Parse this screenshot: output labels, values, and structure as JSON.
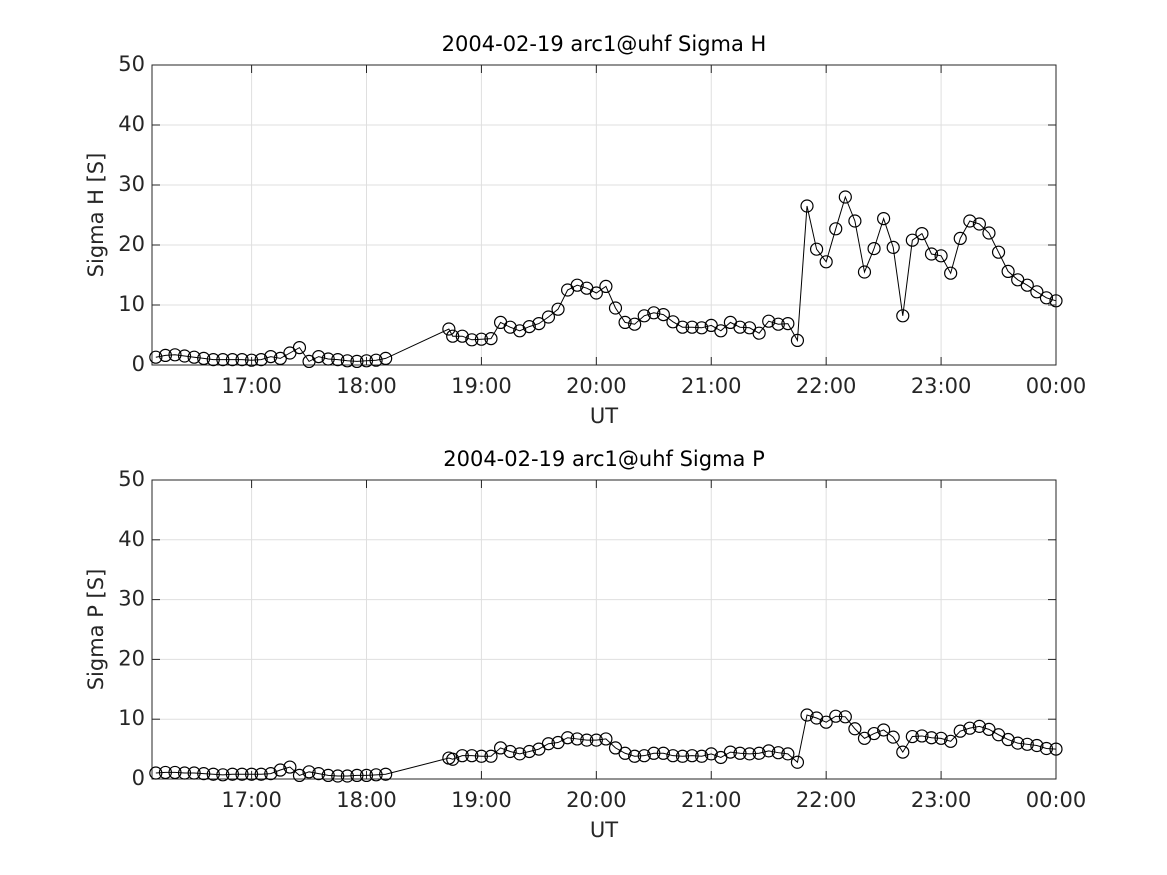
{
  "chart_data": [
    {
      "type": "line",
      "title": "2004-02-19  arc1@uhf Sigma H",
      "xlabel": "UT",
      "ylabel": "Sigma H [S]",
      "color": "#000000",
      "marker": "circle",
      "grid": true,
      "x": [
        970,
        975,
        980,
        985,
        990,
        995,
        1000,
        1005,
        1010,
        1015,
        1020,
        1025,
        1030,
        1035,
        1040,
        1045,
        1050,
        1055,
        1060,
        1065,
        1070,
        1075,
        1080,
        1085,
        1090,
        1123,
        1125,
        1130,
        1135,
        1140,
        1145,
        1150,
        1155,
        1160,
        1165,
        1170,
        1175,
        1180,
        1185,
        1190,
        1195,
        1200,
        1205,
        1210,
        1215,
        1220,
        1225,
        1230,
        1235,
        1240,
        1245,
        1250,
        1255,
        1260,
        1265,
        1270,
        1275,
        1280,
        1285,
        1290,
        1295,
        1300,
        1305,
        1310,
        1315,
        1320,
        1325,
        1330,
        1335,
        1340,
        1345,
        1350,
        1355,
        1360,
        1365,
        1370,
        1375,
        1380,
        1385,
        1390,
        1395,
        1400,
        1405,
        1410,
        1415,
        1420,
        1425,
        1430,
        1435,
        1440
      ],
      "values": [
        1.3,
        1.6,
        1.7,
        1.5,
        1.3,
        1.1,
        0.9,
        0.9,
        0.9,
        0.9,
        0.8,
        0.9,
        1.4,
        1.1,
        2.0,
        2.9,
        0.6,
        1.4,
        1.0,
        0.9,
        0.7,
        0.6,
        0.7,
        0.8,
        1.1,
        6.0,
        4.8,
        4.8,
        4.2,
        4.3,
        4.4,
        7.1,
        6.3,
        5.7,
        6.4,
        6.9,
        8.0,
        9.3,
        12.5,
        13.3,
        12.8,
        12.0,
        13.1,
        9.5,
        7.1,
        6.8,
        8.2,
        8.7,
        8.4,
        7.2,
        6.3,
        6.3,
        6.2,
        6.6,
        5.7,
        7.1,
        6.3,
        6.2,
        5.3,
        7.3,
        6.8,
        6.9,
        4.1,
        26.5,
        19.3,
        17.2,
        22.7,
        28.0,
        24.0,
        15.5,
        19.4,
        24.4,
        19.6,
        8.2,
        20.8,
        21.9,
        18.5,
        18.2,
        15.3,
        21.1,
        24.0,
        23.5,
        22.0,
        18.8,
        15.6,
        14.2,
        13.3,
        12.2,
        11.2,
        10.7
      ],
      "xlim": [
        968,
        1440
      ],
      "ylim": [
        0,
        50
      ],
      "yticks": [
        0,
        10,
        20,
        30,
        40,
        50
      ],
      "xticks": [
        {
          "value": 1020,
          "label": "17:00"
        },
        {
          "value": 1080,
          "label": "18:00"
        },
        {
          "value": 1140,
          "label": "19:00"
        },
        {
          "value": 1200,
          "label": "20:00"
        },
        {
          "value": 1260,
          "label": "21:00"
        },
        {
          "value": 1320,
          "label": "22:00"
        },
        {
          "value": 1380,
          "label": "23:00"
        },
        {
          "value": 1440,
          "label": "00:00"
        }
      ]
    },
    {
      "type": "line",
      "title": "2004-02-19  arc1@uhf Sigma P",
      "xlabel": "UT",
      "ylabel": "Sigma P [S]",
      "color": "#000000",
      "marker": "circle",
      "grid": true,
      "x": [
        970,
        975,
        980,
        985,
        990,
        995,
        1000,
        1005,
        1010,
        1015,
        1020,
        1025,
        1030,
        1035,
        1040,
        1045,
        1050,
        1055,
        1060,
        1065,
        1070,
        1075,
        1080,
        1085,
        1090,
        1123,
        1125,
        1130,
        1135,
        1140,
        1145,
        1150,
        1155,
        1160,
        1165,
        1170,
        1175,
        1180,
        1185,
        1190,
        1195,
        1200,
        1205,
        1210,
        1215,
        1220,
        1225,
        1230,
        1235,
        1240,
        1245,
        1250,
        1255,
        1260,
        1265,
        1270,
        1275,
        1280,
        1285,
        1290,
        1295,
        1300,
        1305,
        1310,
        1315,
        1320,
        1325,
        1330,
        1335,
        1340,
        1345,
        1350,
        1355,
        1360,
        1365,
        1370,
        1375,
        1380,
        1385,
        1390,
        1395,
        1400,
        1405,
        1410,
        1415,
        1420,
        1425,
        1430,
        1435,
        1440
      ],
      "values": [
        1.0,
        1.1,
        1.1,
        1.0,
        1.0,
        0.9,
        0.8,
        0.7,
        0.8,
        0.8,
        0.8,
        0.8,
        0.9,
        1.5,
        2.0,
        0.6,
        1.2,
        0.9,
        0.6,
        0.5,
        0.5,
        0.6,
        0.6,
        0.7,
        0.8,
        3.5,
        3.3,
        3.9,
        3.9,
        3.8,
        3.8,
        5.2,
        4.6,
        4.2,
        4.6,
        5.0,
        5.9,
        6.1,
        6.9,
        6.7,
        6.5,
        6.5,
        6.7,
        5.2,
        4.3,
        3.8,
        3.9,
        4.3,
        4.3,
        3.9,
        3.8,
        3.9,
        3.8,
        4.2,
        3.6,
        4.5,
        4.3,
        4.2,
        4.3,
        4.7,
        4.4,
        4.2,
        2.8,
        10.7,
        10.2,
        9.5,
        10.5,
        10.4,
        8.4,
        6.8,
        7.6,
        8.2,
        7.0,
        4.5,
        7.1,
        7.2,
        6.9,
        6.8,
        6.3,
        8.0,
        8.5,
        8.8,
        8.3,
        7.4,
        6.6,
        6.0,
        5.8,
        5.6,
        5.1,
        5.0
      ],
      "xlim": [
        968,
        1440
      ],
      "ylim": [
        0,
        50
      ],
      "yticks": [
        0,
        10,
        20,
        30,
        40,
        50
      ],
      "xticks": [
        {
          "value": 1020,
          "label": "17:00"
        },
        {
          "value": 1080,
          "label": "18:00"
        },
        {
          "value": 1140,
          "label": "19:00"
        },
        {
          "value": 1200,
          "label": "20:00"
        },
        {
          "value": 1260,
          "label": "21:00"
        },
        {
          "value": 1320,
          "label": "22:00"
        },
        {
          "value": 1380,
          "label": "23:00"
        },
        {
          "value": 1440,
          "label": "00:00"
        }
      ]
    }
  ]
}
